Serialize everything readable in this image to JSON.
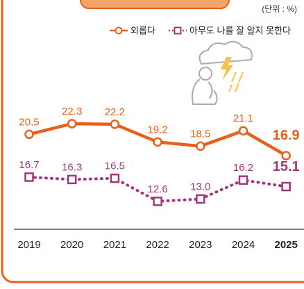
{
  "chart_data": {
    "type": "line",
    "unit_label": "(단위 : %)",
    "categories": [
      "2019",
      "2020",
      "2021",
      "2022",
      "2023",
      "2024",
      "2025"
    ],
    "ylim": [
      5.6,
      25.6
    ],
    "y2lim": [
      9.05,
      29.05
    ],
    "series": [
      {
        "name": "외롭다",
        "color": "#e8611a",
        "style": "solid",
        "marker": "circle",
        "values": [
          20.5,
          22.3,
          22.2,
          19.2,
          18.5,
          21.1,
          16.9
        ]
      },
      {
        "name": "아무도 나를 잘 알지 못한다",
        "color": "#a3367c",
        "style": "dotted",
        "marker": "square",
        "axis": "y2",
        "values": [
          16.7,
          16.3,
          16.5,
          12.6,
          13.0,
          16.2,
          15.1
        ],
        "value_labels": [
          "16.7",
          "16.3",
          "16.5",
          "12.6",
          "13.0",
          "16.2",
          "15.1"
        ]
      }
    ]
  }
}
